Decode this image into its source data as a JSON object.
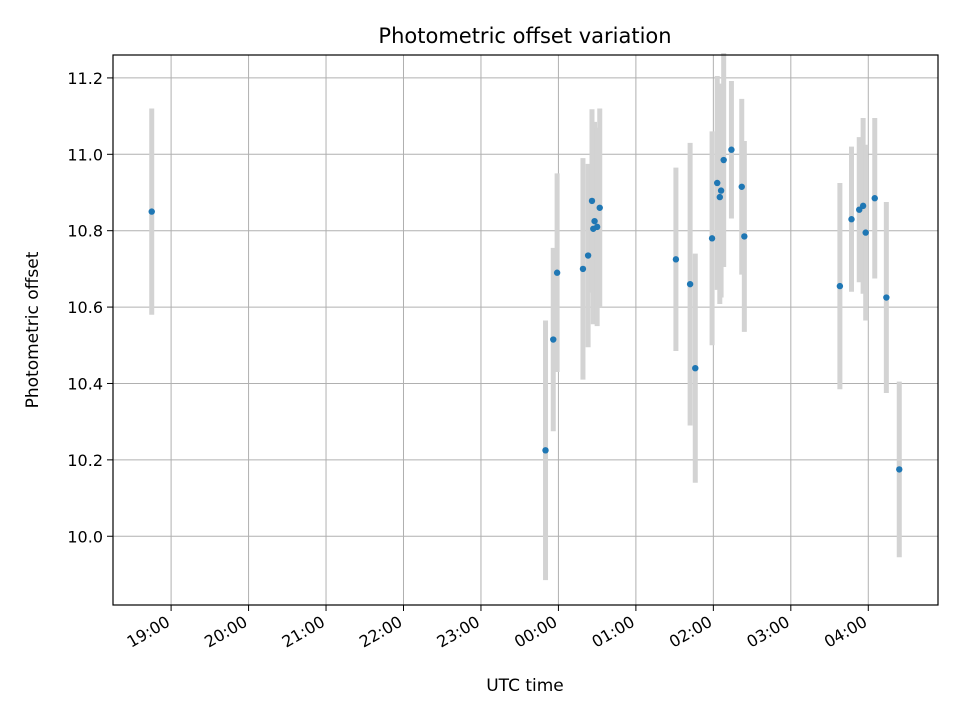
{
  "chart_data": {
    "type": "scatter",
    "title": "Photometric offset variation",
    "xlabel": "UTC time",
    "ylabel": "Photometric offset",
    "x_tick_labels": [
      "19:00",
      "20:00",
      "21:00",
      "22:00",
      "23:00",
      "00:00",
      "01:00",
      "02:00",
      "03:00",
      "04:00"
    ],
    "x_tick_hours": [
      19,
      20,
      21,
      22,
      23,
      24,
      25,
      26,
      27,
      28
    ],
    "xlim_hours": [
      18.25,
      28.9
    ],
    "y_ticks": [
      10.0,
      10.2,
      10.4,
      10.6,
      10.8,
      11.0,
      11.2
    ],
    "y_tick_labels": [
      "10.0",
      "10.2",
      "10.4",
      "10.6",
      "10.8",
      "11.0",
      "11.2"
    ],
    "ylim": [
      9.82,
      11.26
    ],
    "grid": true,
    "colors": {
      "point": "#1f77b4",
      "errorbar": "#d3d3d3",
      "grid": "#b0b0b0"
    },
    "points": [
      {
        "time": "18:45",
        "y": 10.85,
        "err": 0.27
      },
      {
        "time": "23:50",
        "y": 10.225,
        "err": 0.34
      },
      {
        "time": "23:56",
        "y": 10.515,
        "err": 0.24
      },
      {
        "time": "23:59",
        "y": 10.69,
        "err": 0.26
      },
      {
        "time": "00:19",
        "y": 10.7,
        "err": 0.29
      },
      {
        "time": "00:23",
        "y": 10.735,
        "err": 0.24
      },
      {
        "time": "00:26",
        "y": 10.878,
        "err": 0.24
      },
      {
        "time": "00:27",
        "y": 10.805,
        "err": 0.25
      },
      {
        "time": "00:28",
        "y": 10.825,
        "err": 0.26
      },
      {
        "time": "00:30",
        "y": 10.81,
        "err": 0.26
      },
      {
        "time": "00:32",
        "y": 10.86,
        "err": 0.26
      },
      {
        "time": "01:31",
        "y": 10.725,
        "err": 0.24
      },
      {
        "time": "01:42",
        "y": 10.66,
        "err": 0.37
      },
      {
        "time": "01:46",
        "y": 10.44,
        "err": 0.3
      },
      {
        "time": "01:59",
        "y": 10.78,
        "err": 0.28
      },
      {
        "time": "02:03",
        "y": 10.925,
        "err": 0.28
      },
      {
        "time": "02:05",
        "y": 10.888,
        "err": 0.28
      },
      {
        "time": "02:06",
        "y": 10.905,
        "err": 0.28
      },
      {
        "time": "02:08",
        "y": 10.985,
        "err": 0.28
      },
      {
        "time": "02:14",
        "y": 11.012,
        "err": 0.18
      },
      {
        "time": "02:22",
        "y": 10.915,
        "err": 0.23
      },
      {
        "time": "02:24",
        "y": 10.785,
        "err": 0.25
      },
      {
        "time": "03:38",
        "y": 10.655,
        "err": 0.27
      },
      {
        "time": "03:47",
        "y": 10.83,
        "err": 0.19
      },
      {
        "time": "03:53",
        "y": 10.855,
        "err": 0.19
      },
      {
        "time": "03:56",
        "y": 10.865,
        "err": 0.23
      },
      {
        "time": "03:58",
        "y": 10.795,
        "err": 0.23
      },
      {
        "time": "04:05",
        "y": 10.885,
        "err": 0.21
      },
      {
        "time": "04:14",
        "y": 10.625,
        "err": 0.25
      },
      {
        "time": "04:24",
        "y": 10.175,
        "err": 0.23
      }
    ]
  }
}
